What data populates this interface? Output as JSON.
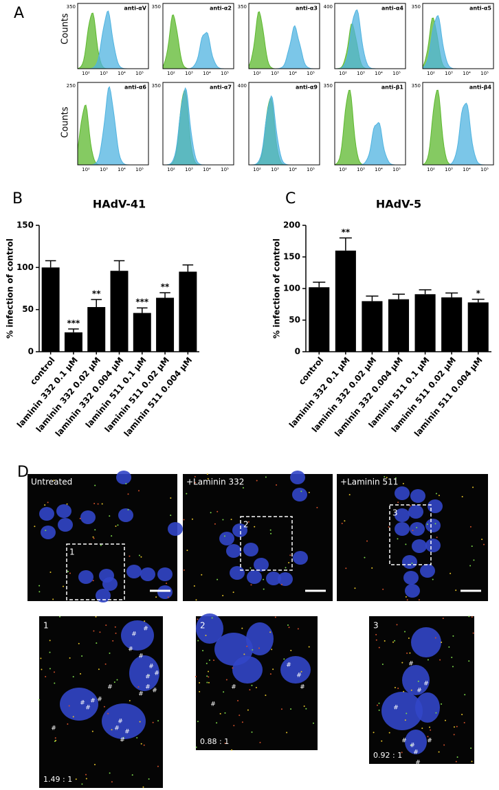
{
  "panel_a": {
    "letter": "A",
    "ylabel": "Counts",
    "xticks": [
      "10²",
      "10³",
      "10⁴",
      "10⁵"
    ],
    "plots": [
      {
        "label": "anti-αV",
        "ymax": 350
      },
      {
        "label": "anti-α2",
        "ymax": 350
      },
      {
        "label": "anti-α3",
        "ymax": 350
      },
      {
        "label": "anti-α4",
        "ymax": 400
      },
      {
        "label": "anti-α5",
        "ymax": 350
      },
      {
        "label": "anti-α6",
        "ymax": 250
      },
      {
        "label": "anti-α7",
        "ymax": 350
      },
      {
        "label": "anti-α9",
        "ymax": 400
      },
      {
        "label": "anti-β1",
        "ymax": 350
      },
      {
        "label": "anti-β4",
        "ymax": 350
      }
    ]
  },
  "chart_data": [
    {
      "type": "bar",
      "panel": "B",
      "title": "HAdV-41",
      "ylabel": "% infection of control",
      "categories": [
        "control",
        "laminin 332 0.1 μM",
        "laminin 332 0.02 μM",
        "laminin 332 0.004 μM",
        "laminin 511 0.1 μM",
        "laminin 511 0.02 μM",
        "laminin 511 0.004 μM"
      ],
      "values": [
        100,
        23,
        53,
        96,
        46,
        64,
        95
      ],
      "errors": [
        8,
        4,
        9,
        12,
        6,
        6,
        8
      ],
      "annotations": [
        null,
        "***",
        "**",
        null,
        "***",
        "**",
        null
      ],
      "color": "#000000",
      "ylim": [
        0,
        150
      ],
      "yticks": [
        0,
        50,
        100,
        150
      ]
    },
    {
      "type": "bar",
      "panel": "C",
      "title": "HAdV-5",
      "ylabel": "% infection of control",
      "categories": [
        "control",
        "laminin 332 0.1 μM",
        "laminin 332 0.02 μM",
        "laminin 332 0.004 μM",
        "laminin 511 0.1 μM",
        "laminin 511 0.02 μM",
        "laminin 511 0.004 μM"
      ],
      "values": [
        102,
        160,
        80,
        83,
        91,
        86,
        78
      ],
      "errors": [
        8,
        20,
        8,
        8,
        7,
        7,
        5
      ],
      "annotations": [
        null,
        "**",
        null,
        null,
        null,
        null,
        "*"
      ],
      "color": "#000000",
      "ylim": [
        0,
        200
      ],
      "yticks": [
        0,
        50,
        100,
        150,
        200
      ]
    }
  ],
  "panel_d": {
    "letter": "D",
    "images": [
      {
        "label": "Untreated",
        "region": "1"
      },
      {
        "label": "+Laminin 332",
        "region": "2"
      },
      {
        "label": "+Laminin 511",
        "region": "3"
      }
    ],
    "zooms": [
      {
        "label": "1",
        "ratio": "1.49 : 1",
        "marker": "#"
      },
      {
        "label": "2",
        "ratio": "0.88 : 1",
        "marker": "#"
      },
      {
        "label": "3",
        "ratio": "0.92 : 1",
        "marker": "#"
      }
    ]
  }
}
